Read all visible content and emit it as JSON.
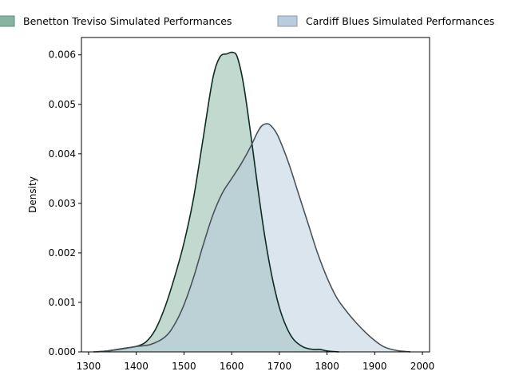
{
  "chart_data": {
    "type": "area",
    "title": "",
    "xlabel": "",
    "ylabel": "Density",
    "xlim": [
      1285,
      2015
    ],
    "ylim": [
      0,
      0.00635
    ],
    "x_ticks": [
      1300,
      1400,
      1500,
      1600,
      1700,
      1800,
      1900,
      2000
    ],
    "y_ticks": [
      "0.000",
      "0.001",
      "0.002",
      "0.003",
      "0.004",
      "0.005",
      "0.006"
    ],
    "grid": false,
    "legend_position": "top",
    "series": [
      {
        "name": "Benetton Treviso Simulated Performances",
        "fill": "#7fb09b",
        "fill_opacity": 0.48,
        "line": "#0d2b22",
        "points": [
          [
            1318,
            0
          ],
          [
            1340,
            2e-05
          ],
          [
            1360,
            5e-05
          ],
          [
            1380,
            8e-05
          ],
          [
            1400,
            0.00011
          ],
          [
            1420,
            0.0002
          ],
          [
            1440,
            0.00045
          ],
          [
            1460,
            0.0009
          ],
          [
            1480,
            0.0015
          ],
          [
            1500,
            0.0022
          ],
          [
            1520,
            0.0031
          ],
          [
            1540,
            0.0043
          ],
          [
            1560,
            0.0055
          ],
          [
            1575,
            0.00595
          ],
          [
            1590,
            0.00602
          ],
          [
            1602,
            0.00605
          ],
          [
            1612,
            0.00595
          ],
          [
            1625,
            0.0054
          ],
          [
            1640,
            0.0044
          ],
          [
            1655,
            0.0033
          ],
          [
            1670,
            0.0023
          ],
          [
            1685,
            0.0015
          ],
          [
            1700,
            0.0009
          ],
          [
            1715,
            0.0005
          ],
          [
            1730,
            0.00025
          ],
          [
            1750,
            0.0001
          ],
          [
            1770,
            5e-05
          ],
          [
            1785,
            5e-05
          ],
          [
            1800,
            2e-05
          ],
          [
            1825,
            0
          ]
        ]
      },
      {
        "name": "Cardiff Blues Simulated Performances",
        "fill": "#b4c9dc",
        "fill_opacity": 0.48,
        "line": "#4a5358",
        "points": [
          [
            1310,
            0
          ],
          [
            1340,
            2e-05
          ],
          [
            1370,
            6e-05
          ],
          [
            1400,
            0.00011
          ],
          [
            1430,
            0.00015
          ],
          [
            1460,
            0.0003
          ],
          [
            1480,
            0.00055
          ],
          [
            1500,
            0.00095
          ],
          [
            1520,
            0.0015
          ],
          [
            1540,
            0.00215
          ],
          [
            1560,
            0.00275
          ],
          [
            1580,
            0.0032
          ],
          [
            1600,
            0.0035
          ],
          [
            1620,
            0.0038
          ],
          [
            1640,
            0.00415
          ],
          [
            1655,
            0.00445
          ],
          [
            1665,
            0.00458
          ],
          [
            1678,
            0.0046
          ],
          [
            1690,
            0.00448
          ],
          [
            1700,
            0.0043
          ],
          [
            1720,
            0.0038
          ],
          [
            1740,
            0.0032
          ],
          [
            1760,
            0.0026
          ],
          [
            1780,
            0.002
          ],
          [
            1800,
            0.0015
          ],
          [
            1820,
            0.0011
          ],
          [
            1840,
            0.00083
          ],
          [
            1860,
            0.0006
          ],
          [
            1880,
            0.0004
          ],
          [
            1900,
            0.00023
          ],
          [
            1920,
            0.0001
          ],
          [
            1945,
            3e-05
          ],
          [
            1975,
            0
          ]
        ]
      }
    ]
  }
}
